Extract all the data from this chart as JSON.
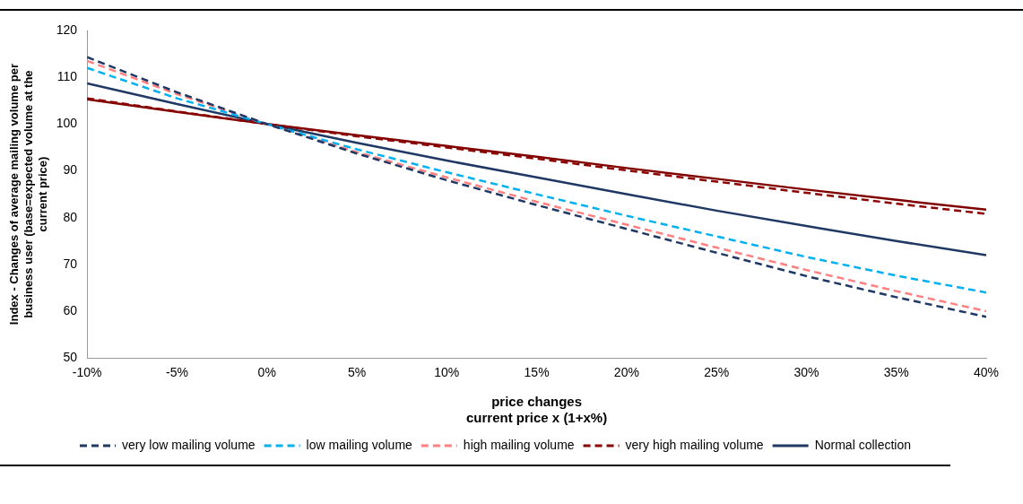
{
  "chart_data": {
    "type": "line",
    "xlabel": "price changes\ncurrent price x (1+x%)",
    "ylabel": "Index - Changes of average mailing volume per business user (base=expected volume at the current price)",
    "x": [
      -10,
      -5,
      0,
      5,
      10,
      15,
      20,
      25,
      30,
      35,
      40
    ],
    "xlim": [
      -10,
      40
    ],
    "xticks": [
      {
        "value": -10,
        "label": "-10%"
      },
      {
        "value": -5,
        "label": "-5%"
      },
      {
        "value": 0,
        "label": "0%"
      },
      {
        "value": 5,
        "label": "5%"
      },
      {
        "value": 10,
        "label": "10%"
      },
      {
        "value": 15,
        "label": "15%"
      },
      {
        "value": 20,
        "label": "20%"
      },
      {
        "value": 25,
        "label": "25%"
      },
      {
        "value": 30,
        "label": "30%"
      },
      {
        "value": 35,
        "label": "35%"
      },
      {
        "value": 40,
        "label": "40%"
      }
    ],
    "ylim": [
      50,
      120
    ],
    "yticks": [
      50,
      60,
      70,
      80,
      90,
      100,
      110,
      120
    ],
    "grid": false,
    "legend": "bottom",
    "marker": "none",
    "series": [
      {
        "name": "very low mailing volume",
        "color": "#1f3864",
        "line_style": "dashed",
        "values": [
          114.3,
          106.8,
          100,
          93.7,
          88,
          82.7,
          77.6,
          72.5,
          67.5,
          63,
          58.8
        ]
      },
      {
        "name": "low mailing volume",
        "color": "#00b0f0",
        "line_style": "dashed",
        "values": [
          112,
          105.5,
          100,
          94.6,
          89.7,
          85,
          80.4,
          76,
          71.6,
          67.6,
          64
        ]
      },
      {
        "name": "high mailing volume",
        "color": "#ff8080",
        "line_style": "dashed",
        "values": [
          113.5,
          106.4,
          100,
          94,
          88.6,
          83.4,
          78.5,
          73.6,
          68.8,
          64.3,
          60
        ]
      },
      {
        "name": "very high mailing volume",
        "color": "#8b0000",
        "line_style": "dashed",
        "values": [
          105.5,
          102.7,
          100,
          97.4,
          95,
          92.6,
          90.1,
          87.7,
          85.3,
          83,
          80.8
        ]
      },
      {
        "name": "Normal collection",
        "color": "#1f3864",
        "line_style": "solid",
        "values": [
          108.7,
          104.3,
          100,
          96,
          92.2,
          88.6,
          85,
          81.5,
          78.2,
          75,
          72
        ]
      },
      {
        "color": "#800000",
        "line_style": "solid",
        "values": [
          105.3,
          102.6,
          100,
          97.6,
          95.3,
          93,
          90.6,
          88.3,
          86,
          83.8,
          81.7
        ]
      }
    ]
  }
}
